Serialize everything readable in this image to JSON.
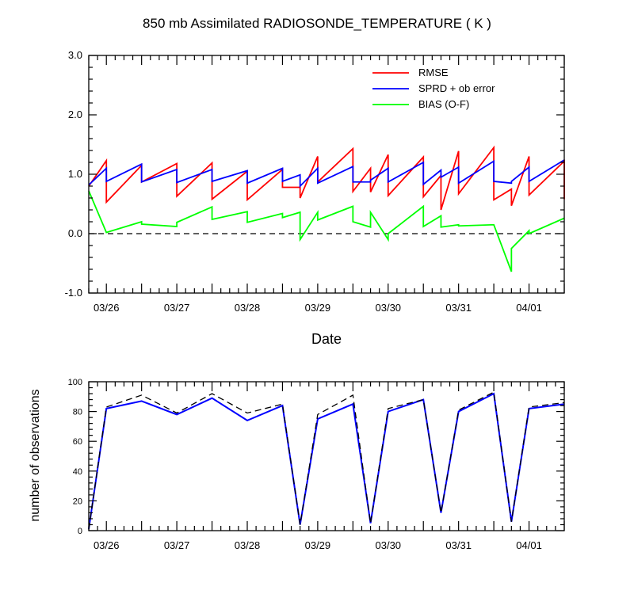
{
  "chart_data": [
    {
      "type": "line",
      "title": "850 mb Assimilated RADIOSONDE_TEMPERATURE ( K )",
      "xlabel": "Date",
      "ylabel": "",
      "xlim": [
        0,
        6.75
      ],
      "ylim": [
        -1.0,
        3.0
      ],
      "yticks": [
        -1.0,
        0.0,
        1.0,
        2.0,
        3.0
      ],
      "ytick_labels": [
        "-1.0",
        "0.0",
        "1.0",
        "2.0",
        "3.0"
      ],
      "xticks": [
        0.25,
        1.25,
        2.25,
        3.25,
        4.25,
        5.25,
        6.25
      ],
      "xtick_labels": [
        "03/26",
        "03/27",
        "03/28",
        "03/29",
        "03/30",
        "03/31",
        "04/01"
      ],
      "zero_line": "dashed",
      "grid": false,
      "legend_position": "top-right",
      "series": [
        {
          "name": "RMSE",
          "color": "#ff0000",
          "x": [
            0,
            0.25,
            0.25,
            0.75,
            0.75,
            1.25,
            1.25,
            1.75,
            1.75,
            2.25,
            2.25,
            2.75,
            2.75,
            3.0,
            3.0,
            3.25,
            3.25,
            3.75,
            3.75,
            4.0,
            4.0,
            4.25,
            4.25,
            4.75,
            4.75,
            5.0,
            5.0,
            5.25,
            5.25,
            5.75,
            5.75,
            6.0,
            6.0,
            6.25,
            6.25,
            6.75,
            6.75
          ],
          "y": [
            0.8,
            1.23,
            0.53,
            1.15,
            0.87,
            1.18,
            0.63,
            1.19,
            0.58,
            1.05,
            0.57,
            1.08,
            0.78,
            0.78,
            0.6,
            1.3,
            0.87,
            1.43,
            0.71,
            1.1,
            0.7,
            1.33,
            0.64,
            1.29,
            0.62,
            0.98,
            0.4,
            1.39,
            0.67,
            1.45,
            0.57,
            0.75,
            0.47,
            1.3,
            0.65,
            1.22,
            0.58
          ]
        },
        {
          "name": "SPRD + ob error",
          "color": "#0000ff",
          "x": [
            0,
            0.25,
            0.25,
            0.75,
            0.75,
            1.25,
            1.25,
            1.75,
            1.75,
            2.25,
            2.25,
            2.75,
            2.75,
            3.0,
            3.0,
            3.25,
            3.25,
            3.75,
            3.75,
            4.0,
            4.0,
            4.25,
            4.25,
            4.75,
            4.75,
            5.0,
            5.0,
            5.25,
            5.25,
            5.75,
            5.75,
            6.0,
            6.0,
            6.25,
            6.25,
            6.75
          ],
          "y": [
            0.82,
            1.1,
            0.88,
            1.17,
            0.87,
            1.08,
            0.86,
            1.08,
            0.88,
            1.06,
            0.85,
            1.1,
            0.88,
            0.99,
            0.8,
            1.1,
            0.85,
            1.13,
            0.87,
            0.87,
            0.9,
            1.1,
            0.87,
            1.2,
            0.83,
            1.07,
            0.95,
            1.12,
            0.85,
            1.22,
            0.88,
            0.85,
            0.88,
            1.12,
            0.88,
            1.24
          ]
        },
        {
          "name": "BIAS (O-F)",
          "color": "#00ff00",
          "x": [
            0,
            0.25,
            0.25,
            0.75,
            0.75,
            1.25,
            1.25,
            1.75,
            1.75,
            2.25,
            2.25,
            2.75,
            2.75,
            3.0,
            3.0,
            3.25,
            3.25,
            3.75,
            3.75,
            4.0,
            4.0,
            4.25,
            4.25,
            4.75,
            4.75,
            5.0,
            5.0,
            5.25,
            5.25,
            5.75,
            5.75,
            6.0,
            6.0,
            6.25,
            6.25,
            6.75
          ],
          "y": [
            0.72,
            0.02,
            0.02,
            0.2,
            0.16,
            0.12,
            0.19,
            0.45,
            0.24,
            0.37,
            0.19,
            0.34,
            0.27,
            0.36,
            -0.1,
            0.36,
            0.23,
            0.46,
            0.2,
            0.11,
            0.36,
            -0.1,
            0.0,
            0.46,
            0.12,
            0.3,
            0.11,
            0.15,
            0.13,
            0.15,
            0.15,
            -0.64,
            -0.25,
            0.05,
            0.0,
            0.26
          ]
        }
      ]
    },
    {
      "type": "line",
      "title": "",
      "xlabel": "",
      "ylabel": "number of observations",
      "xlim": [
        0,
        6.75
      ],
      "ylim": [
        0,
        100
      ],
      "yticks": [
        0,
        20,
        40,
        60,
        80,
        100
      ],
      "ytick_labels": [
        "0",
        "20",
        "40",
        "60",
        "80",
        "100"
      ],
      "xticks": [
        0.25,
        1.25,
        2.25,
        3.25,
        4.25,
        5.25,
        6.25
      ],
      "xtick_labels": [
        "03/26",
        "03/27",
        "03/28",
        "03/29",
        "03/30",
        "03/31",
        "04/01"
      ],
      "grid": false,
      "series": [
        {
          "color": "#0000ff",
          "style": "solid",
          "x": [
            0,
            0.25,
            0.75,
            1.25,
            1.75,
            2.25,
            2.75,
            3.0,
            3.25,
            3.75,
            4.0,
            4.25,
            4.75,
            5.0,
            5.25,
            5.75,
            6.0,
            6.25,
            6.75
          ],
          "y": [
            1,
            82,
            87,
            78,
            89,
            74,
            84,
            4,
            75,
            85,
            5,
            80,
            88,
            12,
            80,
            92,
            6,
            82,
            85
          ]
        },
        {
          "color": "#000000",
          "style": "dashed",
          "x": [
            0,
            0.25,
            0.75,
            1.25,
            1.75,
            2.25,
            2.75,
            3.0,
            3.25,
            3.75,
            4.0,
            4.25,
            4.75,
            5.0,
            5.25,
            5.75,
            6.0,
            6.25,
            6.75
          ],
          "y": [
            1,
            83,
            91,
            79,
            92,
            79,
            85,
            4,
            78,
            91,
            5,
            82,
            88,
            12,
            81,
            93,
            6,
            83,
            86
          ]
        }
      ]
    }
  ]
}
